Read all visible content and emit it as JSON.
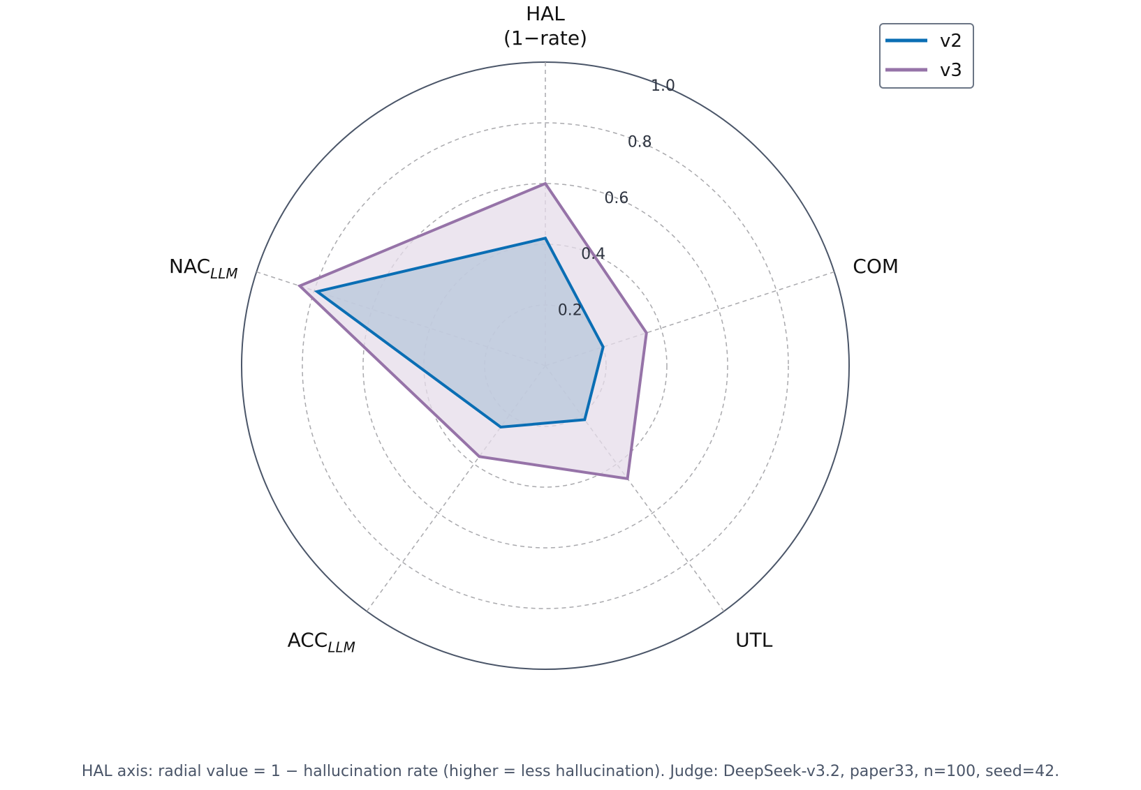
{
  "chart_data": {
    "type": "radar",
    "axes": [
      {
        "label": "HAL",
        "sub": "",
        "line2": "(1−rate)"
      },
      {
        "label": "COM",
        "sub": "",
        "line2": ""
      },
      {
        "label": "UTL",
        "sub": "",
        "line2": ""
      },
      {
        "label": "ACC",
        "sub": "LLM",
        "line2": ""
      },
      {
        "label": "NAC",
        "sub": "LLM",
        "line2": ""
      }
    ],
    "rlim": [
      0,
      1.0
    ],
    "ticks": [
      0.2,
      0.4,
      0.6,
      0.8,
      1.0
    ],
    "tick_labels": [
      "0.2",
      "0.4",
      "0.6",
      "0.8",
      "1.0"
    ],
    "grid": true,
    "legend_position": "top-right",
    "series": [
      {
        "name": "v2",
        "color": "#0a6eb4",
        "fill": "#b8c7db",
        "values": [
          0.42,
          0.2,
          0.22,
          0.25,
          0.79
        ]
      },
      {
        "name": "v3",
        "color": "#9673a8",
        "fill": "#e6dcea",
        "values": [
          0.6,
          0.35,
          0.46,
          0.37,
          0.85
        ]
      }
    ],
    "footnote": "HAL axis: radial value = 1 − hallucination rate (higher = less hallucination). Judge: DeepSeek-v3.2, paper33, n=100, seed=42."
  }
}
